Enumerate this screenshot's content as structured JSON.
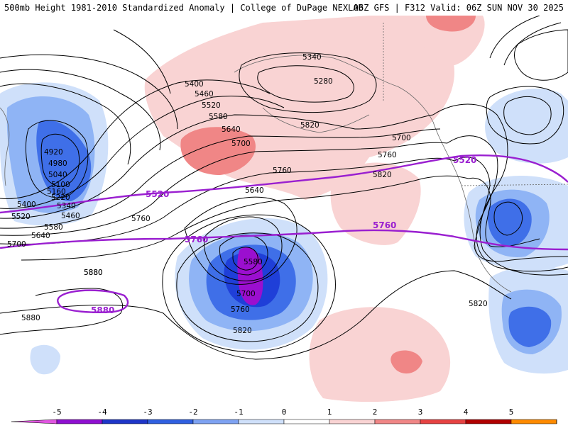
{
  "header": {
    "title_left": "500mb Height 1981-2010 Standardized Anomaly | College of DuPage NEXLAB",
    "title_right": "06Z GFS | F312 Valid: 06Z SUN NOV 30 2025"
  },
  "map": {
    "region": "North Pacific and North America",
    "contour_labels": [
      "4920",
      "4980",
      "5040",
      "5100",
      "5160",
      "5220",
      "5340",
      "5400",
      "5460",
      "5520",
      "5580",
      "5640",
      "5700",
      "5760",
      "5820",
      "5880",
      "5280",
      "5340",
      "5400",
      "5460",
      "5520",
      "5580",
      "5640",
      "5700",
      "5760",
      "5820",
      "5580",
      "5700",
      "5760",
      "5820",
      "5640",
      "5700",
      "5760",
      "5820",
      "5880",
      "5880"
    ],
    "highlight_contours": [
      {
        "value": "5520",
        "label": "5520"
      },
      {
        "value": "5760",
        "label": "5760"
      },
      {
        "value": "5880",
        "label": "5880"
      }
    ],
    "colors": {
      "strong_negative": "#9b0fcf",
      "negative_4": "#1f3fd8",
      "negative_3": "#3f6fe8",
      "negative_2": "#8fb4f5",
      "negative_1": "#cfe0fa",
      "neutral": "#ffffff",
      "positive_1": "#f9d3d3",
      "positive_2": "#f08686",
      "positive_3": "#e64242",
      "positive_4": "#b00000",
      "positive_5": "#ff9900",
      "highlight_line": "#9a1fd0"
    }
  },
  "colorbar": {
    "ticks": [
      "-5",
      "-4",
      "-3",
      "-2",
      "-1",
      "0",
      "1",
      "2",
      "3",
      "4",
      "5"
    ],
    "segments": [
      "#e055e0",
      "#8e0fd0",
      "#1e35c8",
      "#2f5fe0",
      "#7ea2f2",
      "#cfe0fa",
      "#ffffff",
      "#f9d3d3",
      "#f08686",
      "#e64242",
      "#b00000",
      "#ff8a00",
      "#ffcc33"
    ]
  }
}
